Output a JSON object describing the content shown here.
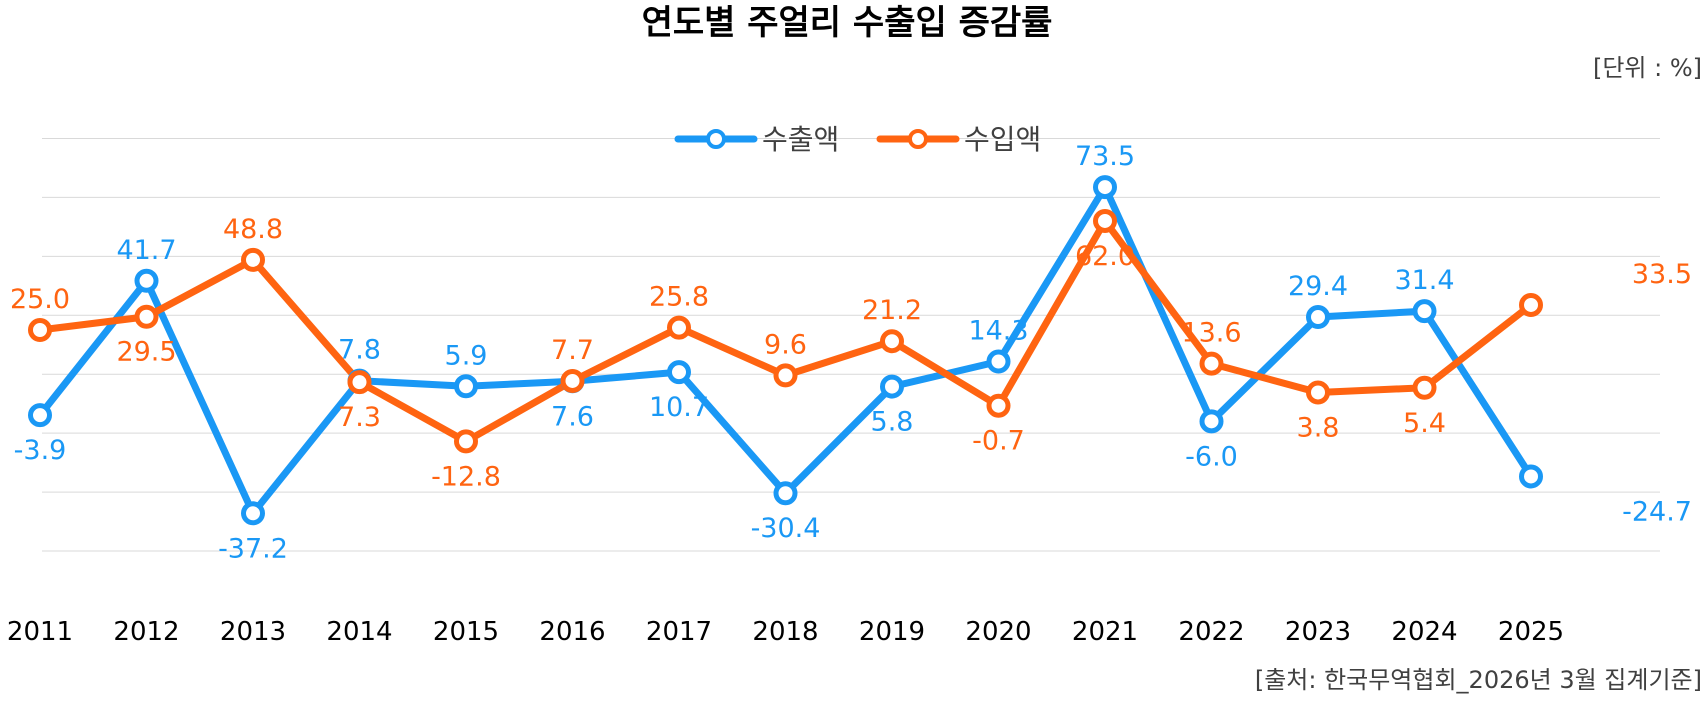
{
  "chart_data": {
    "type": "line",
    "title": "연도별 주얼리 수출입 증감률",
    "unit_label": "[단위 : %]",
    "source": "[출처: 한국무역협회_2026년 3월 집계기준]",
    "categories": [
      "2011",
      "2012",
      "2013",
      "2014",
      "2015",
      "2016",
      "2017",
      "2018",
      "2019",
      "2020",
      "2021",
      "2022",
      "2023",
      "2024",
      "2025"
    ],
    "series": [
      {
        "name": "수출액",
        "color": "#1A98F5",
        "values": [
          -3.9,
          41.7,
          -37.2,
          7.8,
          5.9,
          7.6,
          10.7,
          -30.4,
          5.8,
          14.3,
          73.5,
          -6.0,
          29.4,
          31.4,
          -24.7
        ],
        "labels": [
          "-3.9",
          "41.7",
          "-37.2",
          "7.8",
          "5.9",
          "7.6",
          "10.7",
          "-30.4",
          "5.8",
          "14.3",
          "73.5",
          "-6.0",
          "29.4",
          "31.4",
          "-24.7"
        ]
      },
      {
        "name": "수입액",
        "color": "#FF6411",
        "values": [
          25.0,
          29.5,
          48.8,
          7.3,
          -12.8,
          7.7,
          25.8,
          9.6,
          21.2,
          -0.7,
          62.0,
          13.6,
          3.8,
          5.4,
          33.5
        ],
        "labels": [
          "25.0",
          "29.5",
          "48.8",
          "7.3",
          "-12.8",
          "7.7",
          "25.8",
          "9.6",
          "21.2",
          "-0.7",
          "62.0",
          "13.6",
          "3.8",
          "5.4",
          "33.5"
        ]
      }
    ],
    "ylim": [
      -50,
      100
    ],
    "grid": true,
    "legend_position": "top-center"
  }
}
